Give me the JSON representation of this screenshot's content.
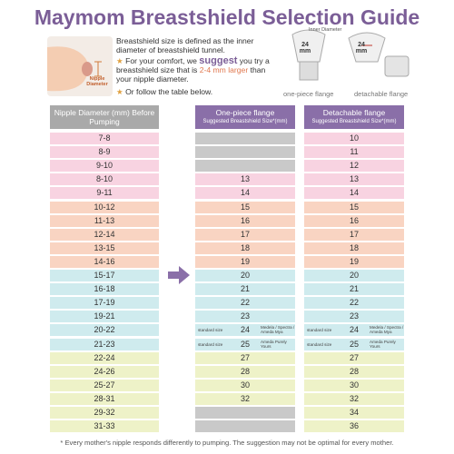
{
  "title": "Maymom Breastshield Selection Guide",
  "intro": {
    "definition": "Breastshield size is defined as the inner diameter of breastshield tunnel.",
    "suggestion": [
      "For your comfort, we ",
      "suggest",
      " you try a breastshield size that is ",
      "2-4 mm larger",
      " than your nipple diameter."
    ],
    "table_hint": "Or follow the table below."
  },
  "illustration": {
    "nipple_label": "Nipple Diameter",
    "inner_label": "Inner Diameter",
    "size_left": "24 mm",
    "size_right": "24 mm",
    "caption_left": "one-piece flange",
    "caption_right": "detachable flange"
  },
  "table": {
    "headers": [
      {
        "title": "Nipple Diameter (mm) Before Pumping"
      },
      {
        "title": "One-piece flange",
        "subtitle": "Suggested Breastshield Size*(mm)"
      },
      {
        "title": "Detachable flange",
        "subtitle": "Suggested Breastshield Size*(mm)"
      }
    ],
    "rows": [
      {
        "nipple": "7-8",
        "one_piece": null,
        "detachable": 10
      },
      {
        "nipple": "8-9",
        "one_piece": null,
        "detachable": 11
      },
      {
        "nipple": "9-10",
        "one_piece": null,
        "detachable": 12
      },
      {
        "nipple": "8-10",
        "one_piece": 13,
        "detachable": 13
      },
      {
        "nipple": "9-11",
        "one_piece": 14,
        "detachable": 14
      },
      {
        "nipple": "10-12",
        "one_piece": 15,
        "detachable": 15
      },
      {
        "nipple": "11-13",
        "one_piece": 16,
        "detachable": 16
      },
      {
        "nipple": "12-14",
        "one_piece": 17,
        "detachable": 17
      },
      {
        "nipple": "13-15",
        "one_piece": 18,
        "detachable": 18
      },
      {
        "nipple": "14-16",
        "one_piece": 19,
        "detachable": 19
      },
      {
        "nipple": "15-17",
        "one_piece": 20,
        "detachable": 20
      },
      {
        "nipple": "16-18",
        "one_piece": 21,
        "detachable": 21
      },
      {
        "nipple": "17-19",
        "one_piece": 22,
        "detachable": 22
      },
      {
        "nipple": "19-21",
        "one_piece": 23,
        "detachable": 23
      },
      {
        "nipple": "20-22",
        "one_piece": 24,
        "detachable": 24,
        "note": "standard size",
        "brands": "Medela / Spectra / Ameda Mya"
      },
      {
        "nipple": "21-23",
        "one_piece": 25,
        "detachable": 25,
        "note": "standard size",
        "brands": "Ameda Purely Yours"
      },
      {
        "nipple": "22-24",
        "one_piece": 27,
        "detachable": 27
      },
      {
        "nipple": "24-26",
        "one_piece": 28,
        "detachable": 28
      },
      {
        "nipple": "25-27",
        "one_piece": 30,
        "detachable": 30
      },
      {
        "nipple": "28-31",
        "one_piece": 32,
        "detachable": 32
      },
      {
        "nipple": "29-32",
        "one_piece": null,
        "detachable": 34
      },
      {
        "nipple": "31-33",
        "one_piece": null,
        "detachable": 36
      }
    ]
  },
  "footnote": "* Every mother's nipple responds differently to pumping. The suggestion may not be optimal for every mother."
}
